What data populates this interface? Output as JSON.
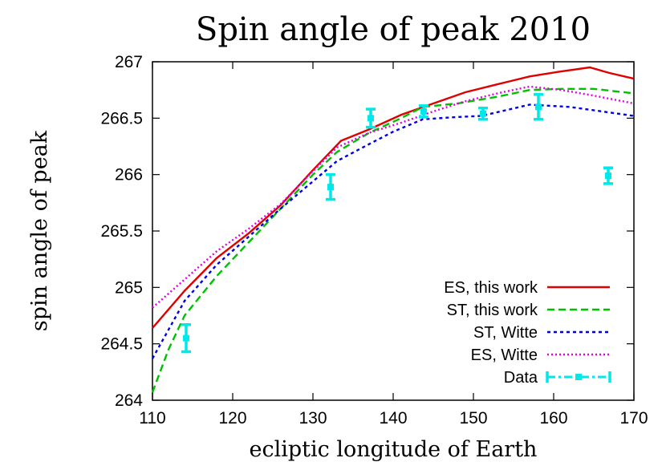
{
  "chart_data": {
    "type": "line",
    "title": "Spin angle of peak 2010",
    "xlabel": "ecliptic longitude of Earth",
    "ylabel": "spin angle of peak",
    "xlim": [
      110,
      170
    ],
    "ylim": [
      264,
      267
    ],
    "x_ticks": [
      "110",
      "120",
      "130",
      "140",
      "150",
      "160",
      "170"
    ],
    "y_ticks": [
      "264",
      "264.5",
      "265",
      "265.5",
      "266",
      "266.5",
      "267"
    ],
    "grid": false,
    "legend_position": "bottom-right",
    "series": [
      {
        "name": "ES, this work",
        "color": "#e00000",
        "style": "solid",
        "x": [
          110,
          114,
          118,
          122,
          126,
          130,
          133.5,
          137,
          141,
          145,
          149,
          153,
          157,
          160.5,
          164.5,
          167,
          170
        ],
        "y": [
          264.64,
          264.97,
          265.26,
          265.48,
          265.73,
          266.04,
          266.3,
          266.4,
          266.53,
          266.63,
          266.73,
          266.8,
          266.87,
          266.91,
          266.95,
          266.9,
          266.85
        ]
      },
      {
        "name": "ST, this work",
        "color": "#00c000",
        "style": "dashed",
        "x": [
          110,
          112,
          114,
          118,
          122,
          126,
          130,
          133,
          137,
          141,
          143.7,
          148,
          153,
          157,
          161,
          165,
          170
        ],
        "y": [
          264.07,
          264.45,
          264.75,
          265.1,
          265.4,
          265.7,
          266.0,
          266.2,
          266.37,
          266.5,
          266.6,
          266.63,
          266.69,
          266.75,
          266.76,
          266.76,
          266.72
        ]
      },
      {
        "name": "ST, Witte",
        "color": "#0000e0",
        "style": "dotted-dense",
        "x": [
          110,
          114,
          118,
          122,
          126,
          130,
          133,
          137,
          140,
          143.7,
          148,
          151,
          154,
          157,
          162,
          166,
          170
        ],
        "y": [
          264.37,
          264.88,
          265.2,
          265.45,
          265.7,
          265.94,
          266.12,
          266.27,
          266.38,
          266.49,
          266.51,
          266.52,
          266.57,
          266.62,
          266.6,
          266.56,
          266.52
        ]
      },
      {
        "name": "ES, Witte",
        "color": "#e000e0",
        "style": "dotted",
        "x": [
          110,
          114,
          118,
          122,
          126,
          130,
          133,
          137,
          141,
          145,
          149,
          153,
          157,
          161,
          165,
          170
        ],
        "y": [
          264.82,
          265.07,
          265.32,
          265.52,
          265.74,
          266.03,
          266.24,
          266.37,
          266.46,
          266.56,
          266.65,
          266.72,
          266.78,
          266.75,
          266.7,
          266.63
        ]
      }
    ],
    "data_points": {
      "name": "Data",
      "color": "#00e8e8",
      "points": [
        {
          "x": 114.2,
          "y": 264.55,
          "yerr": 0.12
        },
        {
          "x": 132.2,
          "y": 265.89,
          "yerr": 0.11
        },
        {
          "x": 137.2,
          "y": 266.5,
          "yerr": 0.08
        },
        {
          "x": 143.8,
          "y": 266.56,
          "yerr": 0.05
        },
        {
          "x": 151.2,
          "y": 266.54,
          "yerr": 0.05
        },
        {
          "x": 158.1,
          "y": 266.6,
          "yerr": 0.11
        },
        {
          "x": 166.8,
          "y": 265.99,
          "yerr": 0.07
        }
      ]
    }
  }
}
